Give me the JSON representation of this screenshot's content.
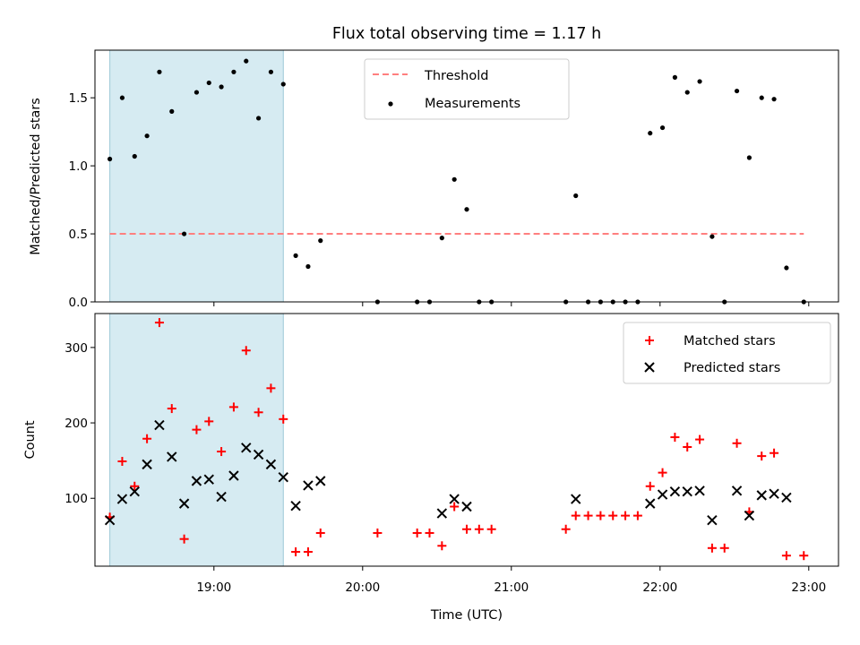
{
  "chart_data": {
    "title": "Flux total observing time = 1.17 h",
    "xlabel": "Time (UTC)",
    "x_ticks": [
      "19:00",
      "20:00",
      "21:00",
      "22:00",
      "23:00"
    ],
    "x_range": [
      "18:12",
      "23:12"
    ],
    "shaded_span": [
      "18:18",
      "19:28"
    ],
    "panels": [
      {
        "type": "scatter",
        "ylabel": "Matched/Predicted stars",
        "ylim": [
          0,
          1.85
        ],
        "y_ticks": [
          0.0,
          0.5,
          1.0,
          1.5
        ],
        "legend_position": "top-center",
        "series": [
          {
            "name": "Threshold",
            "style": "dashed-line",
            "color": "#ff7f7f",
            "x": [
              "18:18",
              "22:58"
            ],
            "y": [
              0.5,
              0.5
            ]
          },
          {
            "name": "Measurements",
            "style": "dot",
            "color": "#000000",
            "points": [
              [
                "18:18",
                1.05
              ],
              [
                "18:23",
                1.5
              ],
              [
                "18:28",
                1.07
              ],
              [
                "18:33",
                1.22
              ],
              [
                "18:38",
                1.69
              ],
              [
                "18:43",
                1.4
              ],
              [
                "18:48",
                0.5
              ],
              [
                "18:53",
                1.54
              ],
              [
                "18:58",
                1.61
              ],
              [
                "19:03",
                1.58
              ],
              [
                "19:08",
                1.69
              ],
              [
                "19:13",
                1.77
              ],
              [
                "19:18",
                1.35
              ],
              [
                "19:23",
                1.69
              ],
              [
                "19:28",
                1.6
              ],
              [
                "19:33",
                0.34
              ],
              [
                "19:38",
                0.26
              ],
              [
                "19:43",
                0.45
              ],
              [
                "20:06",
                0.0
              ],
              [
                "20:22",
                0.0
              ],
              [
                "20:27",
                0.0
              ],
              [
                "20:32",
                0.47
              ],
              [
                "20:37",
                0.9
              ],
              [
                "20:42",
                0.68
              ],
              [
                "20:47",
                0.0
              ],
              [
                "20:52",
                0.0
              ],
              [
                "21:22",
                0.0
              ],
              [
                "21:26",
                0.78
              ],
              [
                "21:31",
                0.0
              ],
              [
                "21:36",
                0.0
              ],
              [
                "21:41",
                0.0
              ],
              [
                "21:46",
                0.0
              ],
              [
                "21:51",
                0.0
              ],
              [
                "21:56",
                1.24
              ],
              [
                "22:01",
                1.28
              ],
              [
                "22:06",
                1.65
              ],
              [
                "22:11",
                1.54
              ],
              [
                "22:16",
                1.62
              ],
              [
                "22:21",
                0.48
              ],
              [
                "22:26",
                0.0
              ],
              [
                "22:31",
                1.55
              ],
              [
                "22:36",
                1.06
              ],
              [
                "22:41",
                1.5
              ],
              [
                "22:46",
                1.49
              ],
              [
                "22:51",
                0.25
              ],
              [
                "22:58",
                0.0
              ]
            ]
          }
        ]
      },
      {
        "type": "scatter",
        "ylabel": "Count",
        "ylim": [
          10,
          345
        ],
        "y_ticks": [
          100,
          200,
          300
        ],
        "legend_position": "top-right",
        "series": [
          {
            "name": "Matched stars",
            "marker": "plus",
            "color": "#ff0000",
            "points": [
              [
                "18:18",
                75
              ],
              [
                "18:23",
                149
              ],
              [
                "18:28",
                116
              ],
              [
                "18:33",
                179
              ],
              [
                "18:38",
                333
              ],
              [
                "18:43",
                219
              ],
              [
                "18:48",
                46
              ],
              [
                "18:53",
                191
              ],
              [
                "18:58",
                202
              ],
              [
                "19:03",
                162
              ],
              [
                "19:08",
                221
              ],
              [
                "19:13",
                296
              ],
              [
                "19:18",
                214
              ],
              [
                "19:23",
                246
              ],
              [
                "19:28",
                205
              ],
              [
                "19:33",
                29
              ],
              [
                "19:38",
                29
              ],
              [
                "19:43",
                54
              ],
              [
                "20:06",
                54
              ],
              [
                "20:22",
                54
              ],
              [
                "20:27",
                54
              ],
              [
                "20:32",
                37
              ],
              [
                "20:37",
                89
              ],
              [
                "20:42",
                59
              ],
              [
                "20:47",
                59
              ],
              [
                "20:52",
                59
              ],
              [
                "21:22",
                59
              ],
              [
                "21:26",
                77
              ],
              [
                "21:31",
                77
              ],
              [
                "21:36",
                77
              ],
              [
                "21:41",
                77
              ],
              [
                "21:46",
                77
              ],
              [
                "21:51",
                77
              ],
              [
                "21:56",
                116
              ],
              [
                "22:01",
                134
              ],
              [
                "22:06",
                181
              ],
              [
                "22:11",
                168
              ],
              [
                "22:16",
                178
              ],
              [
                "22:21",
                34
              ],
              [
                "22:26",
                34
              ],
              [
                "22:31",
                173
              ],
              [
                "22:36",
                82
              ],
              [
                "22:41",
                156
              ],
              [
                "22:46",
                160
              ],
              [
                "22:51",
                24
              ],
              [
                "22:58",
                24
              ]
            ]
          },
          {
            "name": "Predicted stars",
            "marker": "x",
            "color": "#000000",
            "points": [
              [
                "18:18",
                71
              ],
              [
                "18:23",
                99
              ],
              [
                "18:28",
                109
              ],
              [
                "18:33",
                145
              ],
              [
                "18:38",
                197
              ],
              [
                "18:43",
                155
              ],
              [
                "18:48",
                93
              ],
              [
                "18:53",
                123
              ],
              [
                "18:58",
                125
              ],
              [
                "19:03",
                102
              ],
              [
                "19:08",
                130
              ],
              [
                "19:13",
                167
              ],
              [
                "19:18",
                158
              ],
              [
                "19:23",
                145
              ],
              [
                "19:28",
                128
              ],
              [
                "19:33",
                90
              ],
              [
                "19:38",
                117
              ],
              [
                "19:43",
                123
              ],
              [
                "20:32",
                80
              ],
              [
                "20:37",
                99
              ],
              [
                "20:42",
                89
              ],
              [
                "21:26",
                99
              ],
              [
                "21:56",
                93
              ],
              [
                "22:01",
                105
              ],
              [
                "22:06",
                109
              ],
              [
                "22:11",
                109
              ],
              [
                "22:16",
                110
              ],
              [
                "22:21",
                71
              ],
              [
                "22:31",
                110
              ],
              [
                "22:36",
                77
              ],
              [
                "22:41",
                104
              ],
              [
                "22:46",
                106
              ],
              [
                "22:51",
                101
              ]
            ]
          }
        ]
      }
    ]
  }
}
